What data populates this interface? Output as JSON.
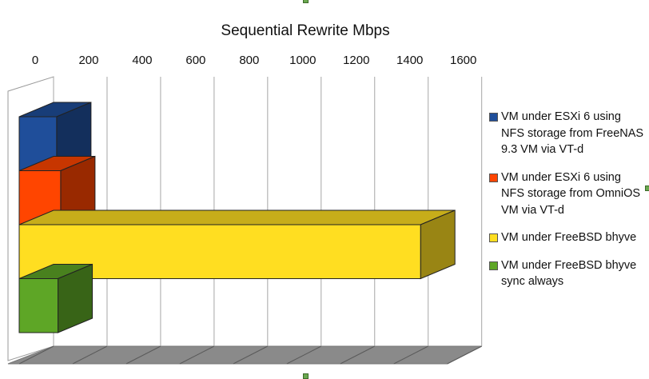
{
  "chart_data": {
    "type": "bar",
    "orientation": "horizontal",
    "style": "3d-stacked-rows",
    "title": "Sequential Rewrite Mbps",
    "xlabel": "",
    "ylabel": "",
    "xlim": [
      0,
      1600
    ],
    "x_ticks": [
      "0",
      "200",
      "400",
      "600",
      "800",
      "1000",
      "1200",
      "1400",
      "1600"
    ],
    "grid": true,
    "legend_position": "right",
    "series": [
      {
        "name": "VM under ESXi 6 using NFS storage from FreeNAS 9.3 VM via VT-d",
        "value": 140,
        "color": "#1f4e9a"
      },
      {
        "name": "VM under ESXi 6 using NFS storage from OmniOS VM via VT-d",
        "value": 155,
        "color": "#ff4500"
      },
      {
        "name": "VM under FreeBSD bhyve",
        "value": 1500,
        "color": "#ffde21"
      },
      {
        "name": "VM under FreeBSD bhyve sync always",
        "value": 145,
        "color": "#5ea626"
      }
    ]
  }
}
